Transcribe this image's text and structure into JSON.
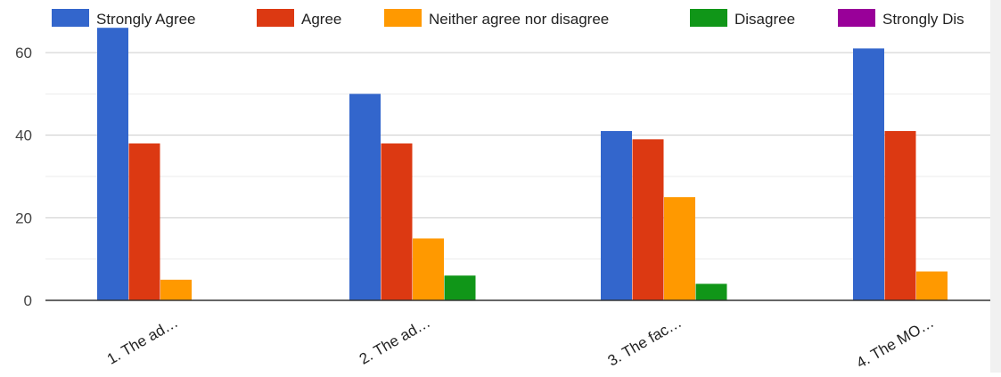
{
  "chart_data": {
    "type": "bar",
    "title": "",
    "xlabel": "",
    "ylabel": "",
    "ylim": [
      0,
      70
    ],
    "y_ticks": [
      "0",
      "20",
      "40",
      "60"
    ],
    "grid": true,
    "legend_position": "top",
    "categories": [
      "1. The ad…",
      "2. The ad…",
      "3. The fac…",
      "4. The MO…"
    ],
    "series": [
      {
        "name": "Strongly Agree",
        "color": "#3366cc",
        "values": [
          66,
          50,
          41,
          61
        ]
      },
      {
        "name": "Agree",
        "color": "#dc3912",
        "values": [
          38,
          38,
          39,
          41
        ]
      },
      {
        "name": "Neither agree nor disagree",
        "color": "#ff9900",
        "values": [
          5,
          15,
          25,
          7
        ]
      },
      {
        "name": "Disagree",
        "color": "#109618",
        "values": [
          0,
          6,
          4,
          0
        ]
      },
      {
        "name": "Strongly Dis",
        "color": "#990099",
        "values": [
          0,
          0,
          0,
          0
        ]
      }
    ]
  }
}
